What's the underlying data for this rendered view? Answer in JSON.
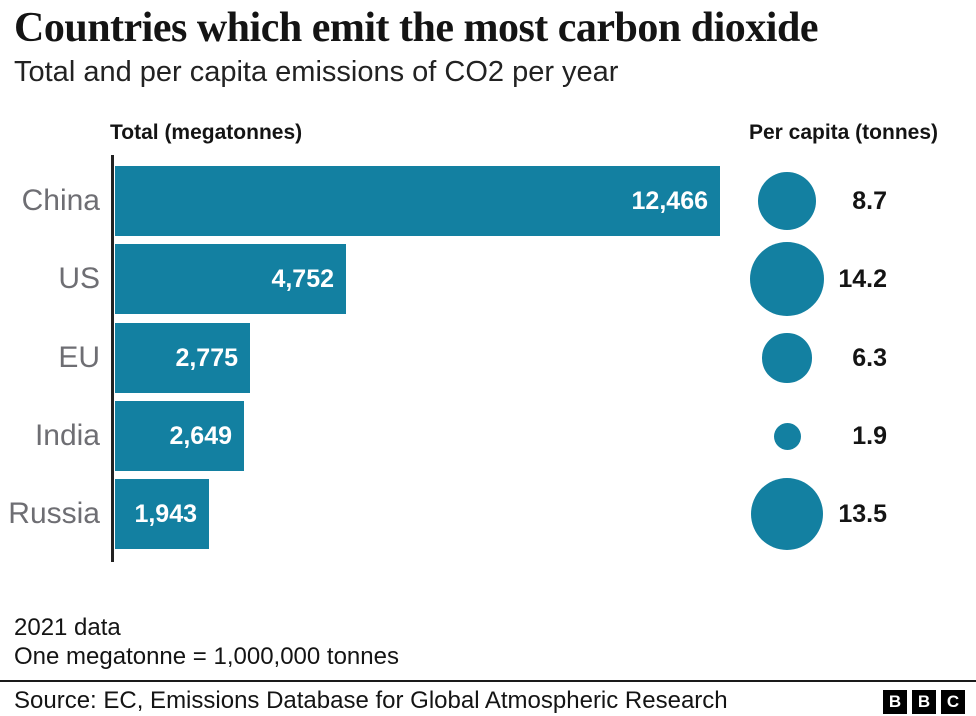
{
  "page": {
    "title": "Countries which emit the most carbon dioxide",
    "subtitle": "Total and per capita emissions of CO2 per year"
  },
  "columns": {
    "total_header": "Total (megatonnes)",
    "per_capita_header": "Per capita (tonnes)"
  },
  "chart_data": {
    "type": "bar",
    "orientation": "horizontal",
    "title": "Countries which emit the most carbon dioxide",
    "subtitle": "Total and per capita emissions of CO2 per year",
    "categories": [
      "China",
      "US",
      "EU",
      "India",
      "Russia"
    ],
    "series": [
      {
        "name": "Total (megatonnes)",
        "unit": "megatonnes",
        "values": [
          12466,
          4752,
          2775,
          2649,
          1943
        ],
        "labels": [
          "12,466",
          "4,752",
          "2,775",
          "2,649",
          "1,943"
        ]
      },
      {
        "name": "Per capita (tonnes)",
        "unit": "tonnes",
        "values": [
          8.7,
          14.2,
          6.3,
          1.9,
          13.5
        ],
        "labels": [
          "8.7",
          "14.2",
          "6.3",
          "1.9",
          "13.5"
        ]
      }
    ],
    "xlim": [
      0,
      12466
    ],
    "grid": false,
    "legend_position": "column-headers",
    "bar_color": "#1380A1",
    "category_label_color": "#6e6e73"
  },
  "footnotes": {
    "line1": "2021 data",
    "line2": "One megatonne = 1,000,000 tonnes"
  },
  "footer": {
    "source": "Source: EC, Emissions Database for Global Atmospheric Research",
    "logo_letters": [
      "B",
      "B",
      "C"
    ]
  }
}
